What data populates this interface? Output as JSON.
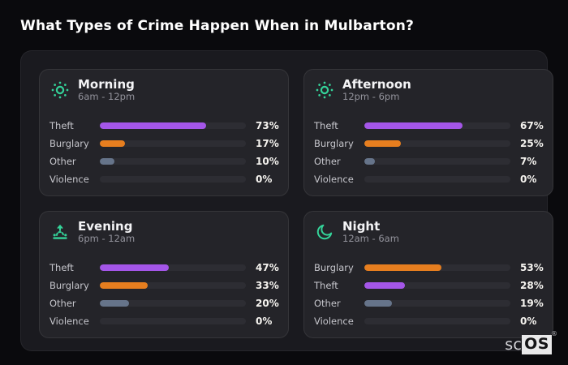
{
  "title": "What Types of Crime Happen When in Mulbarton?",
  "brand": {
    "prefix": "sc",
    "box": "OS",
    "registered": "®"
  },
  "colors": {
    "accent_icon": "#34d399",
    "theft": "#a456e8",
    "burglary": "#e67e1f",
    "other": "#66748a",
    "none": "#2d2d33"
  },
  "chart_data": [
    {
      "type": "bar",
      "orientation": "horizontal",
      "title": "Morning",
      "subtitle": "6am - 12pm",
      "icon": "sun-icon",
      "xlim": [
        0,
        100
      ],
      "categories": [
        "Theft",
        "Burglary",
        "Other",
        "Violence"
      ],
      "values": [
        73,
        17,
        10,
        0
      ],
      "value_labels": [
        "73%",
        "17%",
        "10%",
        "0%"
      ],
      "bar_colors": [
        "theft",
        "burglary",
        "other",
        "none"
      ]
    },
    {
      "type": "bar",
      "orientation": "horizontal",
      "title": "Afternoon",
      "subtitle": "12pm - 6pm",
      "icon": "sun-icon",
      "xlim": [
        0,
        100
      ],
      "categories": [
        "Theft",
        "Burglary",
        "Other",
        "Violence"
      ],
      "values": [
        67,
        25,
        7,
        0
      ],
      "value_labels": [
        "67%",
        "25%",
        "7%",
        "0%"
      ],
      "bar_colors": [
        "theft",
        "burglary",
        "other",
        "none"
      ]
    },
    {
      "type": "bar",
      "orientation": "horizontal",
      "title": "Evening",
      "subtitle": "6pm - 12am",
      "icon": "sunrise-icon",
      "xlim": [
        0,
        100
      ],
      "categories": [
        "Theft",
        "Burglary",
        "Other",
        "Violence"
      ],
      "values": [
        47,
        33,
        20,
        0
      ],
      "value_labels": [
        "47%",
        "33%",
        "20%",
        "0%"
      ],
      "bar_colors": [
        "theft",
        "burglary",
        "other",
        "none"
      ]
    },
    {
      "type": "bar",
      "orientation": "horizontal",
      "title": "Night",
      "subtitle": "12am - 6am",
      "icon": "moon-icon",
      "xlim": [
        0,
        100
      ],
      "categories": [
        "Burglary",
        "Theft",
        "Other",
        "Violence"
      ],
      "values": [
        53,
        28,
        19,
        0
      ],
      "value_labels": [
        "53%",
        "28%",
        "19%",
        "0%"
      ],
      "bar_colors": [
        "burglary",
        "theft",
        "other",
        "none"
      ]
    }
  ]
}
